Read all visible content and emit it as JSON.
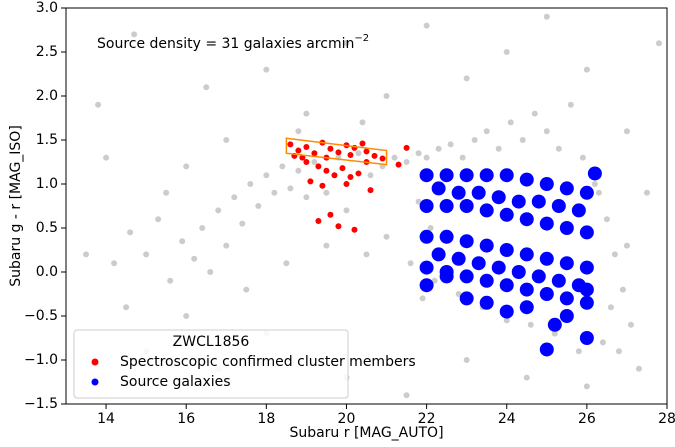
{
  "chart_data": {
    "type": "scatter",
    "xlabel": "Subaru r [MAG_AUTO]",
    "ylabel": "Subaru g - r [MAG_ISO]",
    "annotation": "Source density = 31 galaxies arcmin",
    "annotation_superscript": "−2",
    "xlim": [
      13,
      28
    ],
    "ylim": [
      -1.5,
      3.0
    ],
    "xticks": [
      14,
      16,
      18,
      20,
      22,
      24,
      26,
      28
    ],
    "yticks": [
      {
        "value": -1.5,
        "label": "−1.5"
      },
      {
        "value": -1.0,
        "label": "−1.0"
      },
      {
        "value": -0.5,
        "label": "−0.5"
      },
      {
        "value": 0,
        "label": "0.0"
      },
      {
        "value": 0.5,
        "label": "0.5"
      },
      {
        "value": 1.0,
        "label": "1.0"
      },
      {
        "value": 1.5,
        "label": "1.5"
      },
      {
        "value": 2.0,
        "label": "2.0"
      },
      {
        "value": 2.5,
        "label": "2.5"
      },
      {
        "value": 3.0,
        "label": "3.0"
      }
    ],
    "legend_title": "ZWCL1856",
    "legend_position": "lower-left",
    "selection_region": {
      "color": "#ff8c00",
      "x": [
        18.5,
        21.0,
        21.0,
        18.5
      ],
      "y": [
        1.52,
        1.38,
        1.22,
        1.35
      ]
    },
    "series": [
      {
        "color": "#000000",
        "alpha": 0.2,
        "x": [
          13.5,
          14.2,
          14.6,
          15.0,
          15.3,
          15.6,
          15.9,
          16.2,
          16.4,
          16.6,
          16.8,
          17.0,
          17.2,
          17.4,
          17.6,
          17.8,
          18.0,
          18.2,
          18.4,
          18.6,
          18.8,
          19.0,
          19.2,
          19.5,
          19.8,
          20.0,
          20.3,
          20.6,
          20.9,
          21.2,
          21.5,
          21.8,
          22.0,
          22.3,
          22.6,
          22.9,
          23.2,
          23.5,
          23.8,
          24.1,
          24.4,
          24.7,
          25.0,
          25.3,
          25.6,
          25.9,
          26.2,
          26.5,
          26.7,
          26.9,
          27.1,
          26.8,
          26.4,
          25.8,
          25.2,
          24.6,
          24.0,
          23.4,
          22.8,
          22.2,
          21.6,
          21.0,
          20.5,
          19.5,
          18.5,
          17.5,
          16.0,
          15.0,
          14.5,
          13.8,
          14.7,
          16.5,
          18.0,
          19.0,
          20.0,
          21.0,
          22.0,
          23.0,
          24.0,
          25.0,
          26.0,
          27.0,
          27.5,
          27.3,
          26.0,
          24.5,
          23.0,
          21.5,
          20.0,
          18.0,
          16.8,
          15.5,
          14.0,
          27.8,
          26.6,
          27.0,
          26.3,
          21.8,
          22.1,
          21.9,
          17.0,
          16.0,
          18.8,
          20.4
        ],
        "y": [
          0.2,
          0.1,
          0.45,
          0.2,
          0.6,
          -0.1,
          0.35,
          0.15,
          0.5,
          0.0,
          0.7,
          0.3,
          0.85,
          0.55,
          1.0,
          0.75,
          1.1,
          0.9,
          1.2,
          0.95,
          1.15,
          0.85,
          1.25,
          0.9,
          1.3,
          0.7,
          1.35,
          1.1,
          1.2,
          1.3,
          1.25,
          1.35,
          1.3,
          1.4,
          1.45,
          1.3,
          1.5,
          1.6,
          1.4,
          1.7,
          1.5,
          1.8,
          1.6,
          1.4,
          1.9,
          1.3,
          1.0,
          0.6,
          0.2,
          -0.2,
          -0.6,
          -0.9,
          -0.8,
          -0.9,
          -0.7,
          -0.6,
          -0.55,
          -0.4,
          -0.25,
          -0.1,
          0.1,
          0.4,
          0.2,
          0.3,
          0.1,
          -0.2,
          -0.5,
          -0.9,
          -0.4,
          1.9,
          2.7,
          2.1,
          2.3,
          1.8,
          2.6,
          2.0,
          2.8,
          2.2,
          2.5,
          2.9,
          2.3,
          1.6,
          0.9,
          -1.1,
          -1.3,
          -1.2,
          -1.0,
          -1.4,
          -1.2,
          -0.7,
          -1.1,
          0.9,
          1.3,
          2.6,
          -0.4,
          0.3,
          0.9,
          0.8,
          0.5,
          -0.3,
          1.5,
          1.2,
          1.6,
          1.7
        ]
      },
      {
        "name": "Spectroscopic confirmed cluster members",
        "color": "#ff0000",
        "alpha": 1,
        "x": [
          18.6,
          18.8,
          19.0,
          19.2,
          19.4,
          19.5,
          19.6,
          19.8,
          20.0,
          20.1,
          20.2,
          20.4,
          20.5,
          20.7,
          20.9,
          21.3,
          19.3,
          19.5,
          19.7,
          19.9,
          20.1,
          20.3,
          19.1,
          19.4,
          20.0,
          20.6,
          18.9,
          19.6,
          19.3,
          19.8,
          20.2,
          20.5,
          19.0,
          21.5,
          18.7
        ],
        "y": [
          1.45,
          1.38,
          1.42,
          1.35,
          1.47,
          1.3,
          1.4,
          1.36,
          1.44,
          1.33,
          1.41,
          1.46,
          1.37,
          1.32,
          1.29,
          1.22,
          1.2,
          1.15,
          1.1,
          1.18,
          1.08,
          1.12,
          1.03,
          0.98,
          1.0,
          0.93,
          1.3,
          0.65,
          0.58,
          0.52,
          0.48,
          1.25,
          1.25,
          1.41,
          1.32
        ]
      },
      {
        "name": "Source galaxies",
        "color": "#0000ff",
        "alpha": 1,
        "x": [
          22.0,
          22.5,
          23.0,
          23.5,
          24.0,
          24.5,
          25.0,
          25.5,
          26.0,
          22.0,
          22.5,
          23.0,
          23.5,
          24.0,
          24.5,
          25.0,
          25.5,
          26.0,
          22.0,
          22.5,
          23.0,
          23.5,
          24.0,
          24.5,
          25.0,
          25.5,
          26.0,
          22.0,
          22.5,
          23.0,
          23.5,
          24.0,
          24.5,
          25.0,
          25.5,
          26.0,
          22.3,
          22.8,
          23.3,
          23.8,
          24.3,
          24.8,
          25.3,
          25.8,
          22.3,
          22.8,
          23.3,
          23.8,
          24.3,
          24.8,
          25.3,
          25.8,
          22.0,
          22.5,
          23.0,
          23.5,
          24.0,
          25.0,
          25.5,
          26.0,
          26.2,
          26.0,
          24.5,
          25.2
        ],
        "y": [
          1.1,
          1.1,
          1.1,
          1.1,
          1.1,
          1.05,
          1.0,
          0.95,
          0.9,
          0.75,
          0.75,
          0.75,
          0.7,
          0.65,
          0.6,
          0.55,
          0.5,
          0.45,
          0.4,
          0.4,
          0.35,
          0.3,
          0.25,
          0.2,
          0.15,
          0.1,
          0.05,
          0.05,
          0.0,
          -0.05,
          -0.1,
          -0.15,
          -0.2,
          -0.25,
          -0.3,
          -0.35,
          0.95,
          0.9,
          0.9,
          0.85,
          0.8,
          0.8,
          0.75,
          0.7,
          0.2,
          0.15,
          0.1,
          0.05,
          0.0,
          -0.05,
          -0.1,
          -0.15,
          -0.15,
          -0.05,
          -0.3,
          -0.35,
          -0.45,
          -0.88,
          -0.5,
          -0.75,
          1.12,
          -0.2,
          -0.4,
          -0.6
        ]
      }
    ]
  }
}
